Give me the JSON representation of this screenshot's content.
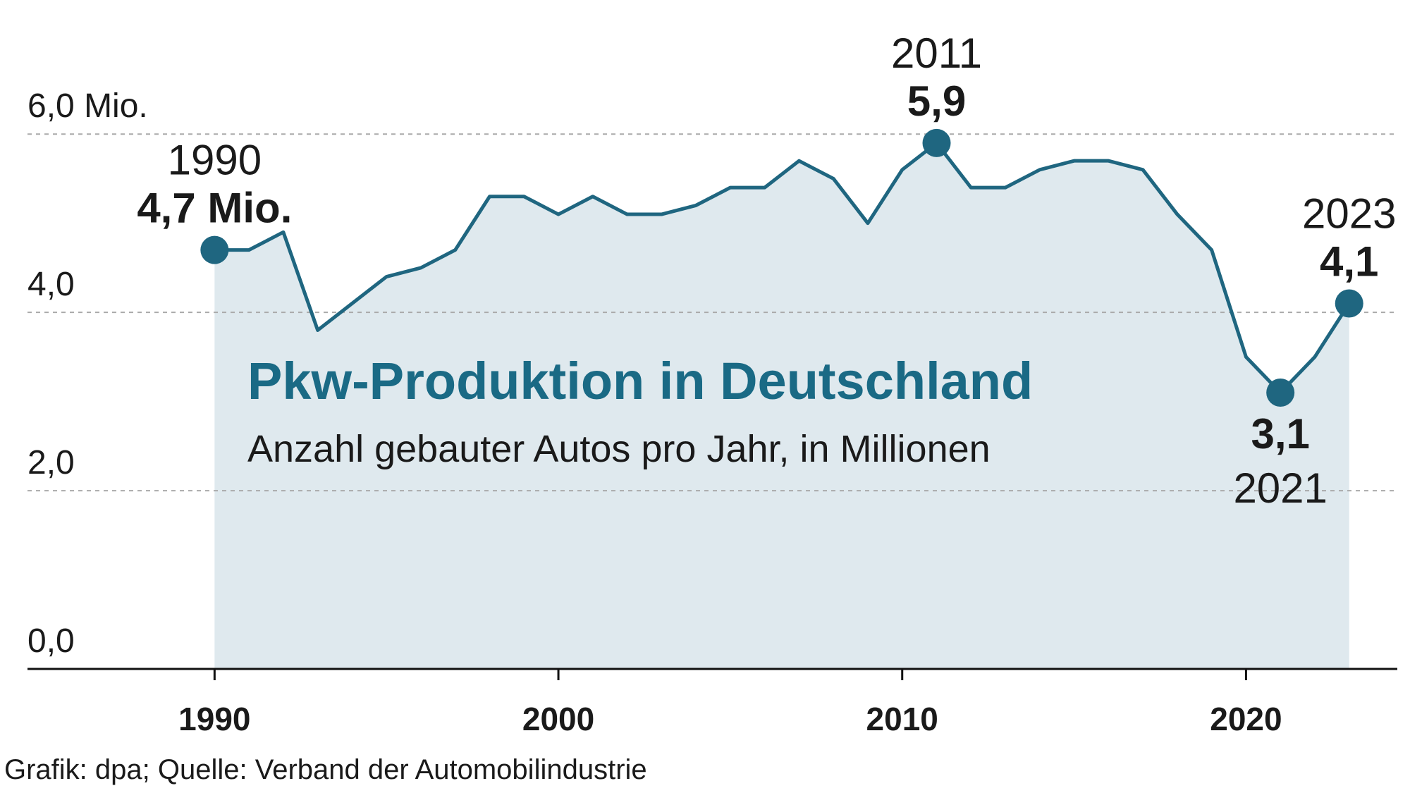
{
  "chart_data": {
    "type": "area",
    "title": "Pkw-Produktion in Deutschland",
    "subtitle": "Anzahl gebauter Autos pro Jahr, in Millionen",
    "source": "Grafik: dpa; Quelle: Verband der Automobilindustrie",
    "x": [
      1990,
      1991,
      1992,
      1993,
      1994,
      1995,
      1996,
      1997,
      1998,
      1999,
      2000,
      2001,
      2002,
      2003,
      2004,
      2005,
      2006,
      2007,
      2008,
      2009,
      2010,
      2011,
      2012,
      2013,
      2014,
      2015,
      2016,
      2017,
      2018,
      2019,
      2020,
      2021,
      2022,
      2023
    ],
    "values": [
      4.7,
      4.7,
      4.9,
      3.8,
      4.1,
      4.4,
      4.5,
      4.7,
      5.3,
      5.3,
      5.1,
      5.3,
      5.1,
      5.1,
      5.2,
      5.4,
      5.4,
      5.7,
      5.5,
      5.0,
      5.6,
      5.9,
      5.4,
      5.4,
      5.6,
      5.7,
      5.7,
      5.6,
      5.1,
      4.7,
      3.5,
      3.1,
      3.5,
      4.1
    ],
    "color": "#1f6680",
    "fill_color": "#dfe9ee",
    "title_color": "#1a6a85",
    "xlim": [
      1984.6,
      2024.4
    ],
    "xticks": [
      1990,
      2000,
      2010,
      2020
    ],
    "ylim": [
      0,
      6.5
    ],
    "yticks": [
      {
        "value": 0,
        "label": "0,0"
      },
      {
        "value": 2,
        "label": "2,0"
      },
      {
        "value": 4,
        "label": "4,0"
      },
      {
        "value": 6,
        "label": "6,0 Mio."
      }
    ],
    "grid": true,
    "annotations": [
      {
        "x": 1990,
        "label": "4,7 Mio."
      },
      {
        "x": 2011,
        "label": "5,9"
      },
      {
        "x": 2021,
        "label": "3,1"
      },
      {
        "x": 2023,
        "label": "4,1"
      }
    ]
  }
}
